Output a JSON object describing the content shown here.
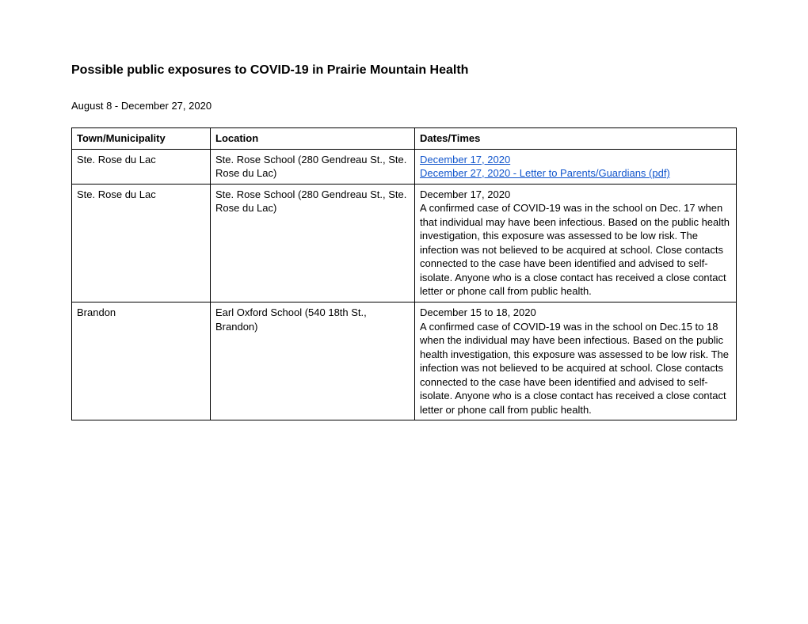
{
  "title": "Possible public exposures to COVID-19 in Prairie Mountain Health",
  "date_range": "August 8 - December 27, 2020",
  "headers": {
    "town": "Town/Municipality",
    "location": "Location",
    "dates": "Dates/Times"
  },
  "rows": [
    {
      "town": "Ste. Rose du Lac",
      "location": "Ste. Rose School (280 Gendreau St., Ste. Rose du Lac)",
      "links": [
        "December 17, 2020",
        "December 27, 2020 - Letter to Parents/Guardians (pdf)"
      ]
    },
    {
      "town": "Ste. Rose du Lac",
      "location": "Ste. Rose School (280 Gendreau St., Ste. Rose du Lac)",
      "date_line": "December 17, 2020",
      "description": "A confirmed case of COVID-19 was in the school on Dec. 17 when that individual may have been infectious. Based on the public health investigation, this exposure was assessed to be low risk. The infection was not believed to be acquired at school. Close contacts connected to the case have been identified and advised to self-isolate. Anyone who is a close contact has received a close contact letter or phone call from public health."
    },
    {
      "town": "Brandon",
      "location": "Earl Oxford School (540 18th St., Brandon)",
      "date_line": "December 15 to 18, 2020",
      "description": "A confirmed case of COVID-19 was in the school on Dec.15 to 18 when the individual may have been infectious. Based on the public health investigation, this exposure was assessed to be low risk. The infection was not believed to be acquired at school. Close contacts connected to the case have been identified and advised to self-isolate. Anyone who is a close contact has received a close contact letter or phone call from public health."
    }
  ],
  "link_color": "#1155cc"
}
